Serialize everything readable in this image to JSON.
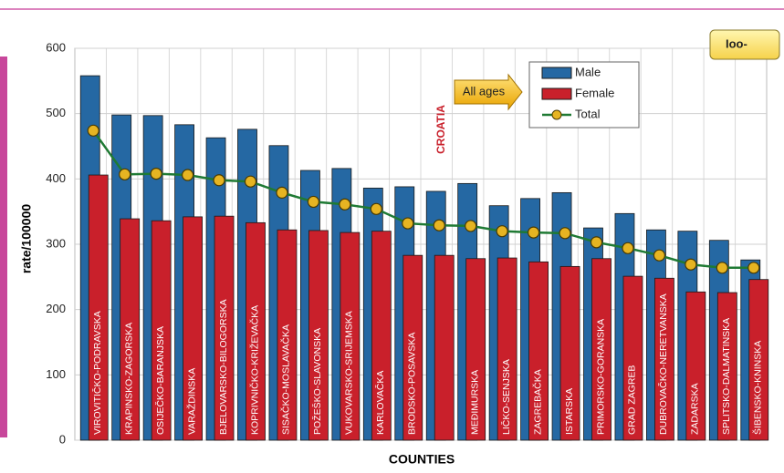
{
  "chart_data": {
    "type": "bar",
    "y_label": "rate/100000",
    "x_label": "COUNTIES",
    "annotations": [
      "All ages",
      "CROATIA",
      "Ioo-"
    ],
    "categories": [
      "VIROVITIČKO-PODRAVSKA",
      "KRAPINSKO-ZAGORSKA",
      "OSIJEČKO-BARANJSKA",
      "VARAŽDINSKA",
      "BJELOVARSKO-BILOGORSKA",
      "KOPRIVNIČKO-KRIŽEVAČKA",
      "SISAČKO-MOSLAVAČKA",
      "POŽEŠKO-SLAVONSKA",
      "VUKOVARSKO-SRIJEMSKA",
      "KARLOVAČKA",
      "BRODSKO-POSAVSKA",
      null,
      "MEĐIMURSKA",
      "LIČKO-SENJSKA",
      "ZAGREBAČKA",
      "ISTARSKA",
      "PRIMORSKO-GORANSKA",
      "GRAD ZAGREB",
      "DUBROVAČKO-NERETVANSKA",
      "ZADARSKA",
      "SPLITSKO-DALMATINSKA",
      "ŠIBENSKO-KNINSKA"
    ],
    "series": [
      {
        "name": "Male",
        "type": "bar",
        "color": "#2568a3",
        "values": [
          558,
          498,
          497,
          483,
          463,
          476,
          451,
          413,
          416,
          386,
          388,
          381,
          393,
          359,
          370,
          379,
          325,
          347,
          322,
          320,
          306,
          276
        ]
      },
      {
        "name": "Female",
        "type": "bar",
        "color": "#c9202b",
        "values": [
          406,
          339,
          336,
          342,
          343,
          333,
          322,
          321,
          318,
          320,
          283,
          283,
          278,
          279,
          273,
          266,
          278,
          251,
          248,
          227,
          226,
          246
        ]
      },
      {
        "name": "Total",
        "type": "line",
        "color": "#1f7a34",
        "values": [
          474,
          407,
          408,
          406,
          398,
          396,
          379,
          365,
          361,
          354,
          332,
          329,
          328,
          320,
          318,
          317,
          303,
          294,
          283,
          269,
          264,
          264
        ]
      }
    ],
    "ylim": [
      0,
      600
    ],
    "yticks": [
      0,
      100,
      200,
      300,
      400,
      500,
      600
    ],
    "grid": true
  }
}
